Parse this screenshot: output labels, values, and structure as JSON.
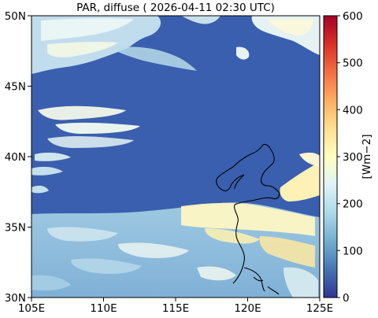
{
  "title": "PAR, diffuse ( 2026-04-11 02:30 UTC)",
  "map": {
    "lon_ticks": [
      "105E",
      "110E",
      "115E",
      "120E",
      "125E"
    ],
    "lat_ticks": [
      "50N",
      "45N",
      "40N",
      "35N",
      "30N"
    ],
    "lon_range": [
      105,
      125
    ],
    "lat_range": [
      30,
      50
    ],
    "background_color": "#3a5fae",
    "coastline_color": "#000000"
  },
  "colorbar": {
    "label": "[Wm−2]",
    "ticks": [
      "600",
      "500",
      "400",
      "300",
      "200",
      "100",
      "0"
    ],
    "range": [
      0,
      600
    ],
    "colors": [
      "#313695",
      "#4575b4",
      "#74add1",
      "#abd9e9",
      "#e0f3f8",
      "#ffffbf",
      "#fee090",
      "#fdae61",
      "#f46d43",
      "#d73027",
      "#a50026"
    ]
  }
}
